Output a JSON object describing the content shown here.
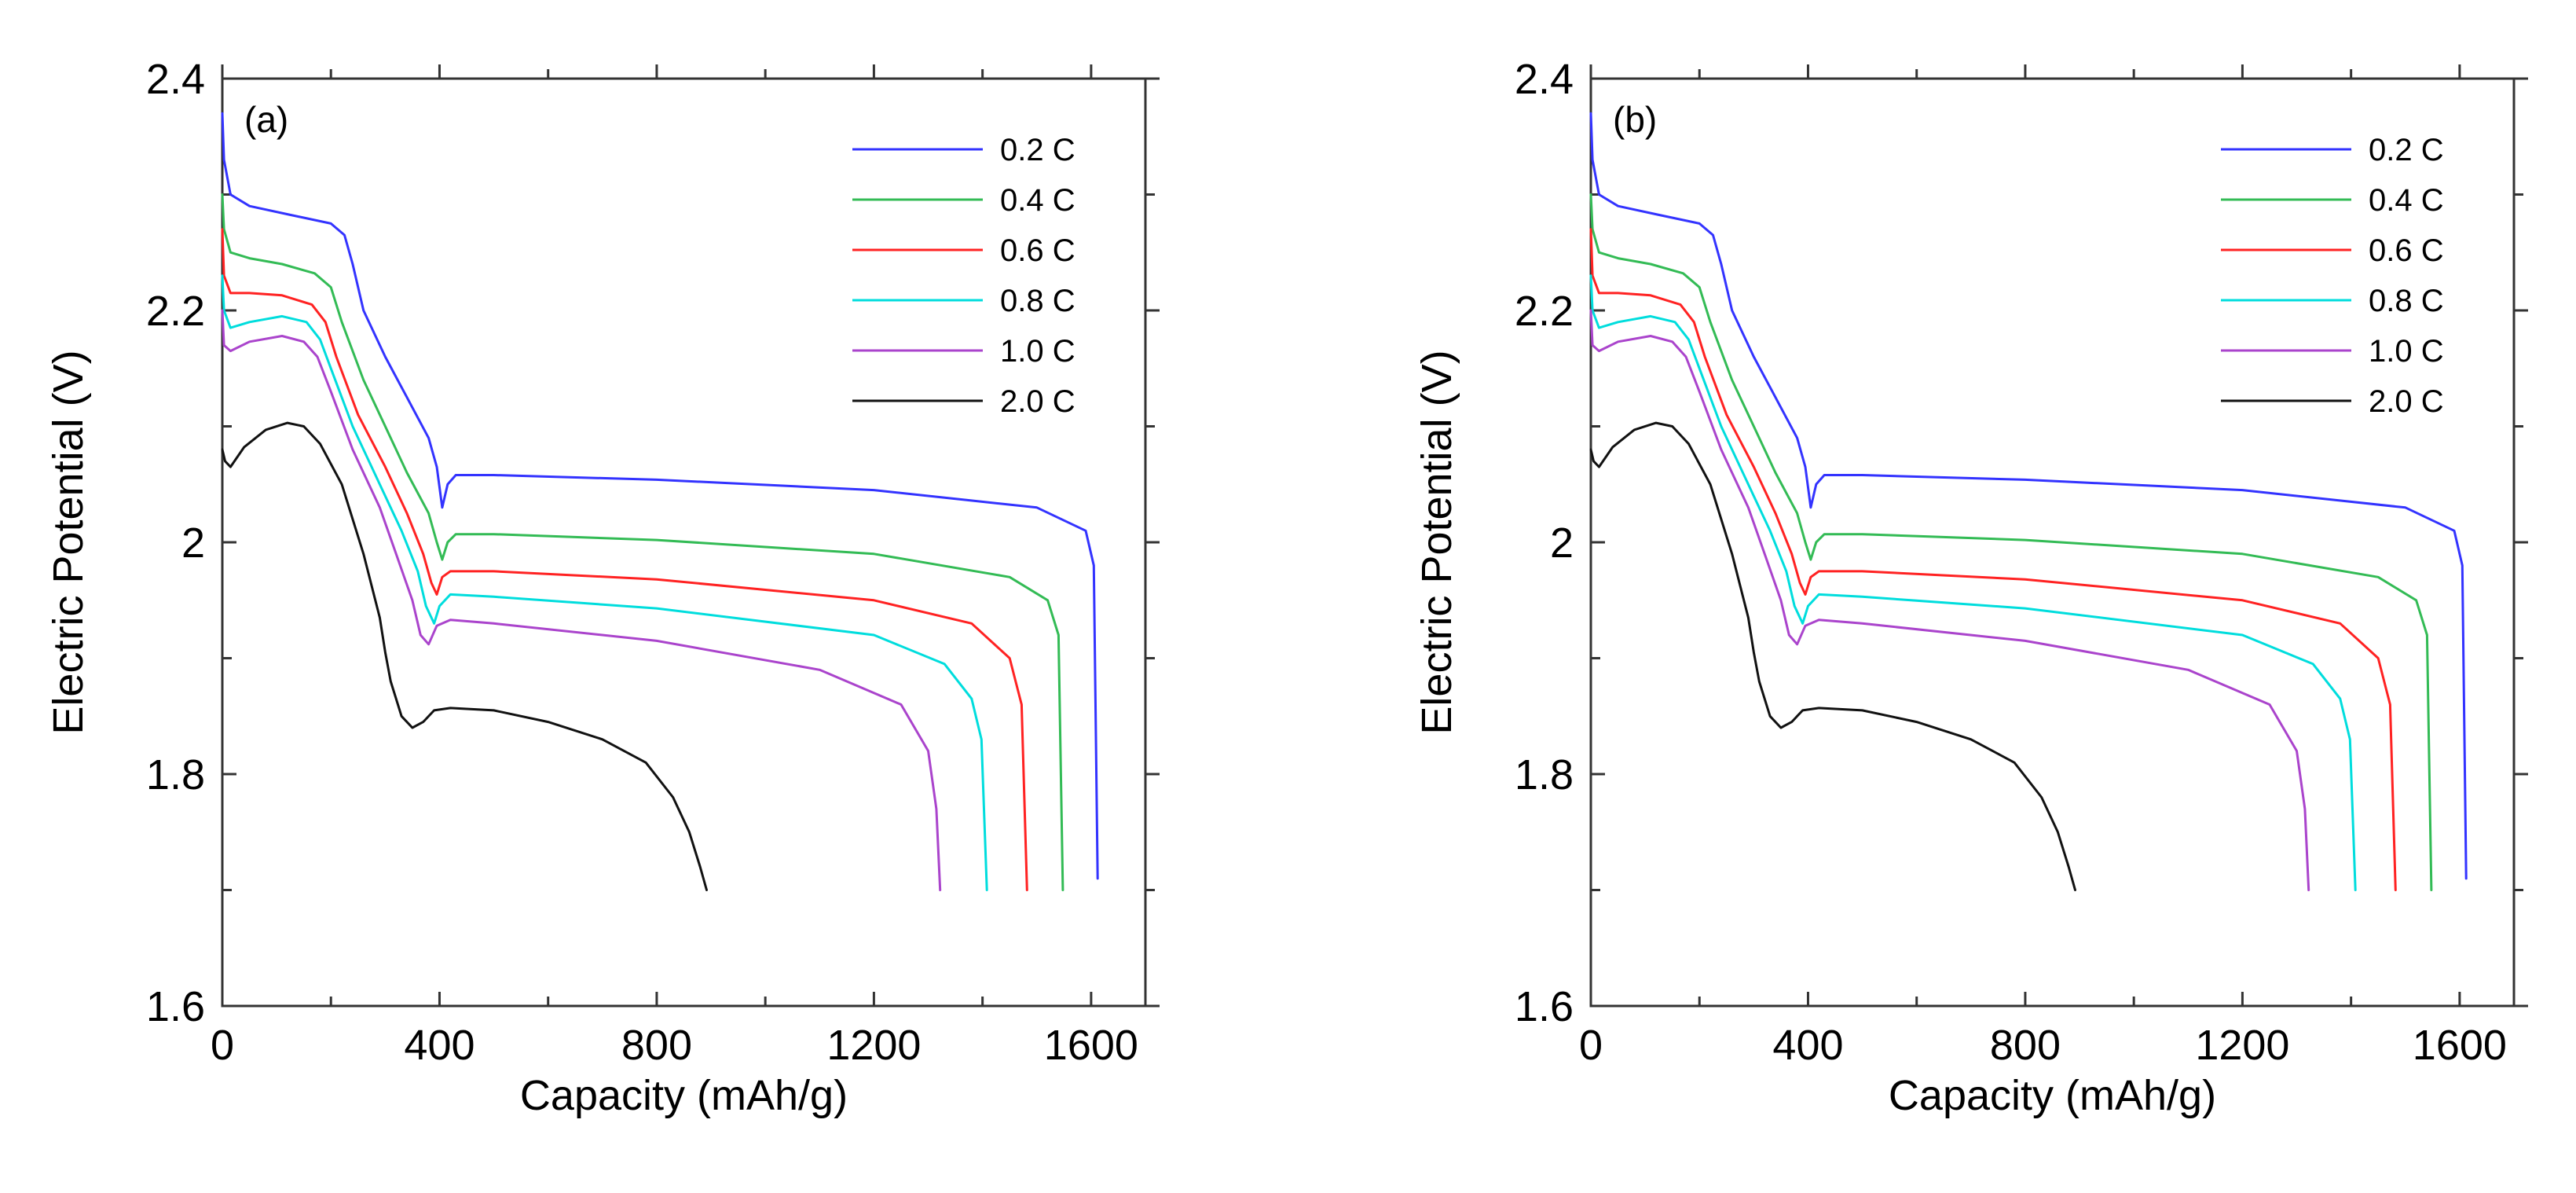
{
  "chart_data": [
    {
      "type": "line",
      "panel_label": "(a)",
      "xlabel": "Capacity (mAh/g)",
      "ylabel": "Electric Potential (V)",
      "xlim": [
        0,
        1700
      ],
      "ylim": [
        1.6,
        2.4
      ],
      "x_ticks": [
        0,
        400,
        800,
        1200,
        1600
      ],
      "x_tick_labels": [
        "0",
        "400",
        "800",
        "1200",
        "1600"
      ],
      "y_ticks": [
        1.6,
        1.8,
        2.0,
        2.2,
        2.4
      ],
      "y_tick_labels": [
        "1.6",
        "1.8",
        "2",
        "2.2",
        "2.4"
      ],
      "legend_position": "top-right",
      "series": [
        {
          "name": "0.2 C",
          "color": "#3333ff",
          "x": [
            0,
            3,
            15,
            50,
            120,
            200,
            225,
            240,
            260,
            300,
            340,
            380,
            395,
            405,
            415,
            430,
            500,
            800,
            1200,
            1500,
            1590,
            1605,
            1612
          ],
          "y": [
            2.37,
            2.33,
            2.3,
            2.29,
            2.283,
            2.275,
            2.265,
            2.24,
            2.2,
            2.16,
            2.125,
            2.09,
            2.065,
            2.03,
            2.05,
            2.058,
            2.058,
            2.054,
            2.045,
            2.03,
            2.01,
            1.98,
            1.71
          ]
        },
        {
          "name": "0.4 C",
          "color": "#33bb55",
          "x": [
            0,
            3,
            15,
            50,
            110,
            170,
            200,
            220,
            260,
            300,
            340,
            380,
            395,
            405,
            415,
            430,
            500,
            800,
            1200,
            1450,
            1520,
            1540,
            1548
          ],
          "y": [
            2.3,
            2.27,
            2.25,
            2.245,
            2.24,
            2.232,
            2.22,
            2.19,
            2.14,
            2.1,
            2.06,
            2.025,
            2.0,
            1.985,
            2.0,
            2.007,
            2.007,
            2.002,
            1.99,
            1.97,
            1.95,
            1.92,
            1.7
          ]
        },
        {
          "name": "0.6 C",
          "color": "#ff2222",
          "x": [
            0,
            3,
            15,
            50,
            110,
            165,
            190,
            210,
            250,
            300,
            340,
            370,
            385,
            395,
            405,
            420,
            500,
            800,
            1200,
            1380,
            1450,
            1472,
            1482
          ],
          "y": [
            2.27,
            2.23,
            2.215,
            2.215,
            2.213,
            2.205,
            2.19,
            2.16,
            2.11,
            2.065,
            2.025,
            1.99,
            1.965,
            1.955,
            1.97,
            1.975,
            1.975,
            1.968,
            1.95,
            1.93,
            1.9,
            1.86,
            1.7
          ]
        },
        {
          "name": "0.8 C",
          "color": "#00dddd",
          "x": [
            0,
            3,
            15,
            50,
            110,
            155,
            180,
            200,
            240,
            290,
            330,
            360,
            375,
            390,
            400,
            420,
            500,
            800,
            1200,
            1330,
            1380,
            1398,
            1408
          ],
          "y": [
            2.23,
            2.2,
            2.185,
            2.19,
            2.195,
            2.19,
            2.175,
            2.15,
            2.1,
            2.05,
            2.01,
            1.975,
            1.945,
            1.93,
            1.945,
            1.955,
            1.953,
            1.943,
            1.92,
            1.895,
            1.865,
            1.83,
            1.7
          ]
        },
        {
          "name": "1.0 C",
          "color": "#aa44cc",
          "x": [
            0,
            3,
            15,
            50,
            110,
            150,
            175,
            200,
            240,
            290,
            320,
            350,
            365,
            380,
            395,
            420,
            500,
            800,
            1100,
            1250,
            1300,
            1315,
            1322
          ],
          "y": [
            2.2,
            2.17,
            2.165,
            2.173,
            2.178,
            2.173,
            2.16,
            2.13,
            2.08,
            2.03,
            1.99,
            1.95,
            1.92,
            1.912,
            1.928,
            1.933,
            1.93,
            1.915,
            1.89,
            1.86,
            1.82,
            1.77,
            1.7
          ]
        },
        {
          "name": "2.0 C",
          "color": "#111111",
          "x": [
            0,
            5,
            15,
            40,
            80,
            120,
            150,
            180,
            220,
            260,
            290,
            300,
            310,
            330,
            350,
            370,
            390,
            420,
            500,
            600,
            700,
            780,
            830,
            860,
            880,
            892
          ],
          "y": [
            2.08,
            2.07,
            2.065,
            2.082,
            2.097,
            2.103,
            2.1,
            2.085,
            2.05,
            1.99,
            1.935,
            1.905,
            1.88,
            1.85,
            1.84,
            1.845,
            1.855,
            1.857,
            1.855,
            1.845,
            1.83,
            1.81,
            1.78,
            1.75,
            1.72,
            1.7
          ]
        }
      ]
    },
    {
      "type": "line",
      "panel_label": "(b)",
      "xlabel": "Capacity (mAh/g)",
      "ylabel": "Electric Potential (V)",
      "xlim": [
        0,
        1700
      ],
      "ylim": [
        1.6,
        2.4
      ],
      "x_ticks": [
        0,
        400,
        800,
        1200,
        1600
      ],
      "x_tick_labels": [
        "0",
        "400",
        "800",
        "1200",
        "1600"
      ],
      "y_ticks": [
        1.6,
        1.8,
        2.0,
        2.2,
        2.4
      ],
      "y_tick_labels": [
        "1.6",
        "1.8",
        "2",
        "2.2",
        "2.4"
      ],
      "legend_position": "top-right",
      "series": [
        {
          "name": "0.2 C",
          "color": "#3333ff",
          "x": [
            0,
            3,
            15,
            50,
            120,
            200,
            225,
            240,
            260,
            300,
            340,
            380,
            395,
            405,
            415,
            430,
            500,
            800,
            1200,
            1500,
            1590,
            1605,
            1612
          ],
          "y": [
            2.37,
            2.33,
            2.3,
            2.29,
            2.283,
            2.275,
            2.265,
            2.24,
            2.2,
            2.16,
            2.125,
            2.09,
            2.065,
            2.03,
            2.05,
            2.058,
            2.058,
            2.054,
            2.045,
            2.03,
            2.01,
            1.98,
            1.71
          ]
        },
        {
          "name": "0.4 C",
          "color": "#33bb55",
          "x": [
            0,
            3,
            15,
            50,
            110,
            170,
            200,
            220,
            260,
            300,
            340,
            380,
            395,
            405,
            415,
            430,
            500,
            800,
            1200,
            1450,
            1520,
            1540,
            1548
          ],
          "y": [
            2.3,
            2.27,
            2.25,
            2.245,
            2.24,
            2.232,
            2.22,
            2.19,
            2.14,
            2.1,
            2.06,
            2.025,
            2.0,
            1.985,
            2.0,
            2.007,
            2.007,
            2.002,
            1.99,
            1.97,
            1.95,
            1.92,
            1.7
          ]
        },
        {
          "name": "0.6 C",
          "color": "#ff2222",
          "x": [
            0,
            3,
            15,
            50,
            110,
            165,
            190,
            210,
            250,
            300,
            340,
            370,
            385,
            395,
            405,
            420,
            500,
            800,
            1200,
            1380,
            1450,
            1472,
            1482
          ],
          "y": [
            2.27,
            2.23,
            2.215,
            2.215,
            2.213,
            2.205,
            2.19,
            2.16,
            2.11,
            2.065,
            2.025,
            1.99,
            1.965,
            1.955,
            1.97,
            1.975,
            1.975,
            1.968,
            1.95,
            1.93,
            1.9,
            1.86,
            1.7
          ]
        },
        {
          "name": "0.8 C",
          "color": "#00dddd",
          "x": [
            0,
            3,
            15,
            50,
            110,
            155,
            180,
            200,
            240,
            290,
            330,
            360,
            375,
            390,
            400,
            420,
            500,
            800,
            1200,
            1330,
            1380,
            1398,
            1408
          ],
          "y": [
            2.23,
            2.2,
            2.185,
            2.19,
            2.195,
            2.19,
            2.175,
            2.15,
            2.1,
            2.05,
            2.01,
            1.975,
            1.945,
            1.93,
            1.945,
            1.955,
            1.953,
            1.943,
            1.92,
            1.895,
            1.865,
            1.83,
            1.7
          ]
        },
        {
          "name": "1.0 C",
          "color": "#aa44cc",
          "x": [
            0,
            3,
            15,
            50,
            110,
            150,
            175,
            200,
            240,
            290,
            320,
            350,
            365,
            380,
            395,
            420,
            500,
            800,
            1100,
            1250,
            1300,
            1315,
            1322
          ],
          "y": [
            2.2,
            2.17,
            2.165,
            2.173,
            2.178,
            2.173,
            2.16,
            2.13,
            2.08,
            2.03,
            1.99,
            1.95,
            1.92,
            1.912,
            1.928,
            1.933,
            1.93,
            1.915,
            1.89,
            1.86,
            1.82,
            1.77,
            1.7
          ]
        },
        {
          "name": "2.0 C",
          "color": "#111111",
          "x": [
            0,
            5,
            15,
            40,
            80,
            120,
            150,
            180,
            220,
            260,
            290,
            300,
            310,
            330,
            350,
            370,
            390,
            420,
            500,
            600,
            700,
            780,
            830,
            860,
            880,
            892
          ],
          "y": [
            2.08,
            2.07,
            2.065,
            2.082,
            2.097,
            2.103,
            2.1,
            2.085,
            2.05,
            1.99,
            1.935,
            1.905,
            1.88,
            1.85,
            1.84,
            1.845,
            1.855,
            1.857,
            1.855,
            1.845,
            1.83,
            1.81,
            1.78,
            1.75,
            1.72,
            1.7
          ]
        }
      ]
    }
  ]
}
